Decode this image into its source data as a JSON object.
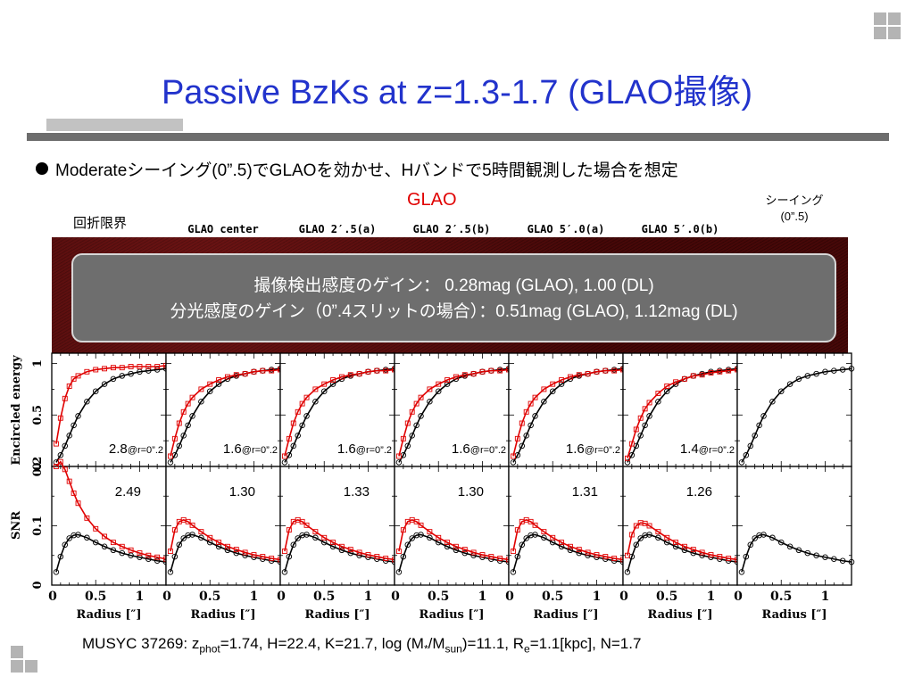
{
  "title": "Passive BzKs at z=1.3-1.7 (GLAO撮像)",
  "bullet": "Moderateシーイング(0”.5)でGLAOを効かせ、Hバンドで5時間観測した場合を想定",
  "labels": {
    "glao": "GLAO",
    "diffraction_limit": "回折限界",
    "seeing_line1": "シーイング",
    "seeing_line2": "(0”.5)"
  },
  "columns": [
    "GLAO center",
    "GLAO 2′.5(a)",
    "GLAO 2′.5(b)",
    "GLAO 5′.0(a)",
    "GLAO 5′.0(b)"
  ],
  "callout": {
    "line1": "撮像検出感度のゲイン：  0.28mag (GLAO), 1.00 (DL)",
    "line2": "分光感度のゲイン（0”.4スリットの場合）：0.51mag (GLAO), 1.12mag (DL)"
  },
  "footer": {
    "prefix": "MUSYC 37269: z",
    "sub1": "phot",
    "mid1": "=1.74, H=22.4, K=21.7, log (M",
    "star": "*",
    "mid2": "/M",
    "sub2": "sun",
    "mid3": ")=11.1, R",
    "sub3": "e",
    "suffix": "=1.1[kpc], N=1.7"
  },
  "colors": {
    "title": "#2233cc",
    "glao_label": "#e00000",
    "red_curve": "#e00000",
    "black_curve": "#000000"
  },
  "chart_data": {
    "type": "line",
    "panels": [
      "Diffraction limit",
      "GLAO center",
      "GLAO 2′.5(a)",
      "GLAO 2′.5(b)",
      "GLAO 5′.0(a)",
      "GLAO 5′.0(b)",
      "Seeing (0”.5)"
    ],
    "xlabel": "Radius [″]",
    "xlim": [
      0,
      1.3
    ],
    "xticks": [
      "0",
      "0.5",
      "1"
    ],
    "x": [
      0.05,
      0.1,
      0.15,
      0.2,
      0.25,
      0.3,
      0.4,
      0.5,
      0.6,
      0.7,
      0.8,
      0.9,
      1.0,
      1.1,
      1.2,
      1.3
    ],
    "encircled_energy": {
      "ylabel": "Encircled energy",
      "ylim": [
        0,
        1.1
      ],
      "yticks": [
        "0",
        "0.5",
        "1"
      ],
      "black_seeing": [
        0.04,
        0.11,
        0.2,
        0.3,
        0.4,
        0.49,
        0.63,
        0.73,
        0.8,
        0.85,
        0.88,
        0.9,
        0.92,
        0.93,
        0.94,
        0.95
      ],
      "red_by_panel": [
        [
          0.22,
          0.47,
          0.66,
          0.78,
          0.85,
          0.88,
          0.92,
          0.94,
          0.95,
          0.96,
          0.96,
          0.97,
          0.97,
          0.97,
          0.97,
          0.98
        ],
        [
          0.1,
          0.27,
          0.42,
          0.53,
          0.61,
          0.67,
          0.75,
          0.8,
          0.84,
          0.87,
          0.89,
          0.9,
          0.92,
          0.93,
          0.93,
          0.94
        ],
        [
          0.1,
          0.27,
          0.42,
          0.53,
          0.61,
          0.67,
          0.75,
          0.8,
          0.84,
          0.87,
          0.89,
          0.9,
          0.92,
          0.93,
          0.93,
          0.94
        ],
        [
          0.1,
          0.27,
          0.42,
          0.53,
          0.61,
          0.67,
          0.75,
          0.8,
          0.84,
          0.87,
          0.89,
          0.9,
          0.92,
          0.93,
          0.93,
          0.94
        ],
        [
          0.1,
          0.27,
          0.42,
          0.53,
          0.61,
          0.67,
          0.75,
          0.8,
          0.84,
          0.87,
          0.89,
          0.9,
          0.92,
          0.93,
          0.93,
          0.94
        ],
        [
          0.08,
          0.22,
          0.36,
          0.47,
          0.56,
          0.62,
          0.71,
          0.78,
          0.82,
          0.85,
          0.88,
          0.89,
          0.91,
          0.92,
          0.93,
          0.94
        ],
        []
      ],
      "annotations": [
        "2.8",
        "1.6",
        "1.6",
        "1.6",
        "1.6",
        "1.4",
        ""
      ],
      "annotation_suffix": "@r=0”.2"
    },
    "snr": {
      "ylabel": "SNR",
      "ylim": [
        0,
        0.2
      ],
      "yticks": [
        "0",
        "0.1",
        "0.2"
      ],
      "black_seeing": [
        0.022,
        0.048,
        0.068,
        0.079,
        0.084,
        0.085,
        0.08,
        0.072,
        0.065,
        0.059,
        0.054,
        0.05,
        0.047,
        0.044,
        0.041,
        0.039
      ],
      "red_by_panel": [
        [
          0.2,
          0.208,
          0.195,
          0.175,
          0.155,
          0.138,
          0.113,
          0.095,
          0.082,
          0.072,
          0.065,
          0.059,
          0.054,
          0.05,
          0.047,
          0.044
        ],
        [
          0.057,
          0.093,
          0.107,
          0.11,
          0.107,
          0.101,
          0.09,
          0.08,
          0.072,
          0.065,
          0.06,
          0.055,
          0.051,
          0.048,
          0.045,
          0.043
        ],
        [
          0.057,
          0.093,
          0.107,
          0.11,
          0.107,
          0.101,
          0.09,
          0.08,
          0.072,
          0.065,
          0.06,
          0.055,
          0.051,
          0.048,
          0.045,
          0.043
        ],
        [
          0.057,
          0.093,
          0.107,
          0.11,
          0.107,
          0.101,
          0.09,
          0.08,
          0.072,
          0.065,
          0.06,
          0.055,
          0.051,
          0.048,
          0.045,
          0.043
        ],
        [
          0.057,
          0.093,
          0.107,
          0.11,
          0.107,
          0.101,
          0.09,
          0.08,
          0.072,
          0.065,
          0.06,
          0.055,
          0.051,
          0.048,
          0.045,
          0.043
        ],
        [
          0.05,
          0.085,
          0.1,
          0.105,
          0.104,
          0.1,
          0.09,
          0.08,
          0.072,
          0.065,
          0.06,
          0.055,
          0.051,
          0.048,
          0.045,
          0.043
        ],
        []
      ],
      "annotations": [
        "2.49",
        "1.30",
        "1.33",
        "1.30",
        "1.31",
        "1.26",
        ""
      ]
    }
  }
}
